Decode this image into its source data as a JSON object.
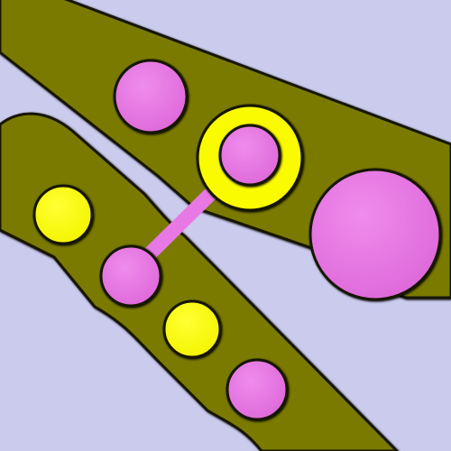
{
  "colors": {
    "background": "#cbcbee",
    "track": "#7a7a00",
    "track_outline": "#141400",
    "pink_piece": "#e878e4",
    "yellow_piece": "#fdfd00",
    "yellow_ring": "#fbfb00"
  },
  "pieces": {
    "upper_track": [
      "pink",
      "yellow-ring-with-pink-node",
      "large-pink"
    ],
    "lower_track": [
      "yellow",
      "pink-node",
      "yellow",
      "pink"
    ],
    "connector": "pink-link"
  }
}
